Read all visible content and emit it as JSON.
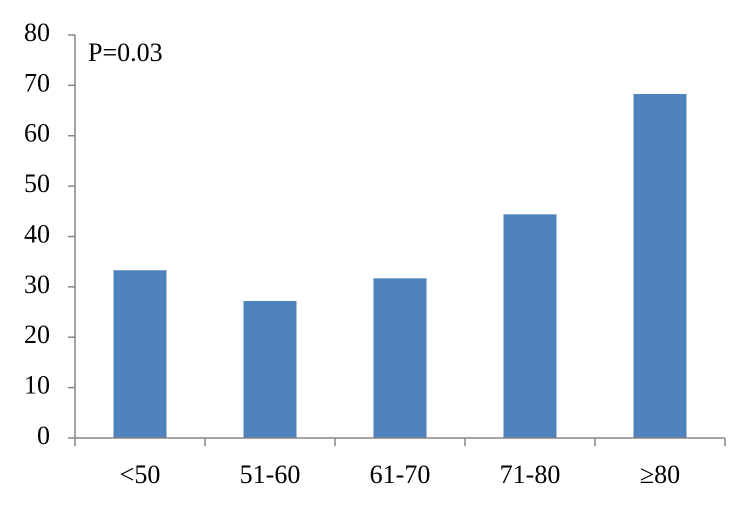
{
  "chart_data": {
    "type": "bar",
    "annotation": "P=0.03",
    "categories": [
      "<50",
      "51-60",
      "61-70",
      "71-80",
      "≥80"
    ],
    "values": [
      33.3,
      27.2,
      31.7,
      44.4,
      68.3
    ],
    "color": "#4f81bd",
    "ylim": [
      0,
      80
    ],
    "yticks": [
      0,
      10,
      20,
      30,
      40,
      50,
      60,
      70,
      80
    ],
    "grid": false
  }
}
